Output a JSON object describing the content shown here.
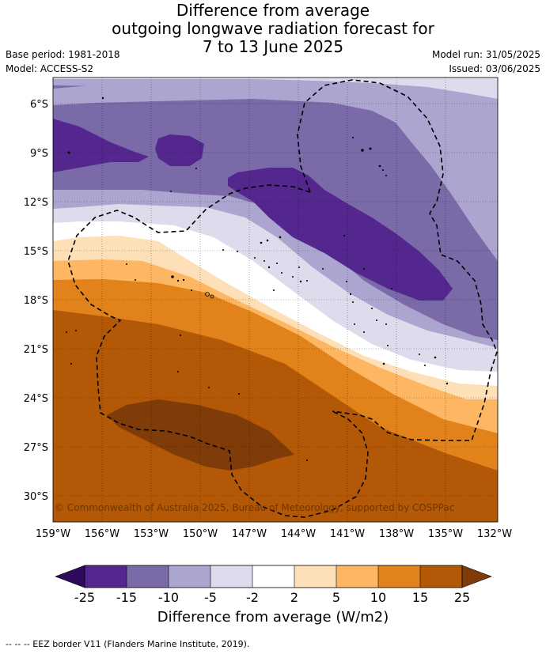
{
  "title": {
    "line1": "Difference from average",
    "line2": "outgoing longwave radiation forecast for",
    "line3": "7 to 13 June 2025"
  },
  "meta": {
    "base_period": "Base period: 1981-2018",
    "model": "Model: ACCESS-S2",
    "model_run": "Model run: 31/05/2025",
    "issued": "Issued: 03/06/2025"
  },
  "map": {
    "lat_labels": [
      "6°S",
      "9°S",
      "12°S",
      "15°S",
      "18°S",
      "21°S",
      "24°S",
      "27°S",
      "30°S"
    ],
    "lon_labels": [
      "159°W",
      "156°W",
      "153°W",
      "150°W",
      "147°W",
      "144°W",
      "141°W",
      "138°W",
      "135°W",
      "132°W"
    ],
    "copyright": "© Commonwealth of Australia 2025, Bureau of Meteorology, supported by COSPPac"
  },
  "colorbar": {
    "title": "Difference from average (W/m2)",
    "tick_labels": [
      "-25",
      "-15",
      "-10",
      "-5",
      "-2",
      "2",
      "5",
      "10",
      "15",
      "25"
    ],
    "colors": [
      "#2e0a5c",
      "#54278f",
      "#7a6aa8",
      "#aca5cf",
      "#dcdcec",
      "#ffffff",
      "#fde0b8",
      "#fdb762",
      "#e1821a",
      "#b35806",
      "#7f3b08"
    ]
  },
  "footer": "-- -- -- EEZ border V11 (Flanders Marine Institute, 2019)."
}
